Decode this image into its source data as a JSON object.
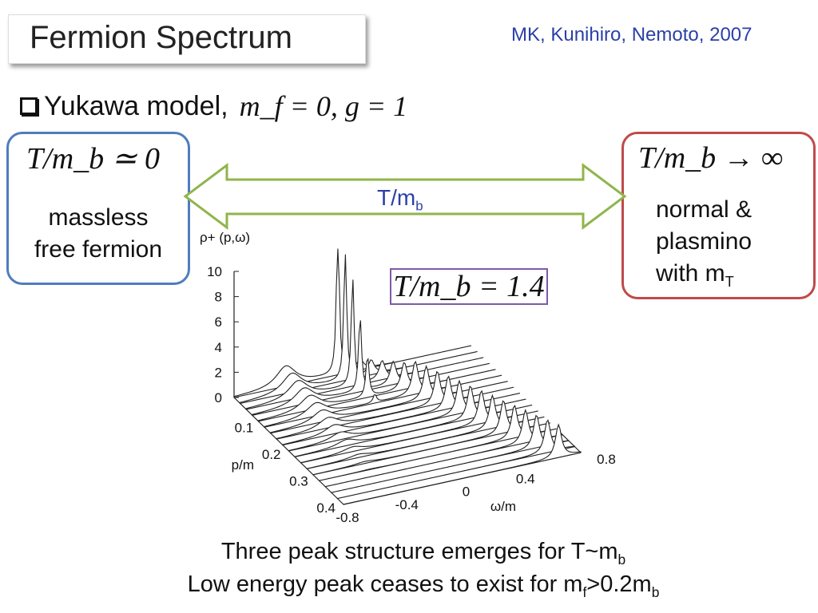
{
  "title": "Fermion Spectrum",
  "citation": "MK, Kunihiro, Nemoto, 2007",
  "bullet": {
    "text": "Yukawa model, ",
    "math": "m_f = 0, g = 1"
  },
  "left_box": {
    "math": "T/m_b ≃ 0",
    "line1": "massless",
    "line2": "free fermion",
    "color": "#4f7cbf"
  },
  "right_box": {
    "math": "T/m_b → ∞",
    "line1": "normal &",
    "line2": "plasmino",
    "line3": "with m",
    "line3_sub": "T",
    "color": "#c04a4a"
  },
  "arrow": {
    "label": "T/m",
    "label_sub": "b",
    "color": "#8fb54a"
  },
  "plot": {
    "z_label": "ρ+ (p,ω)",
    "z_ticks": [
      "0",
      "2",
      "4",
      "6",
      "8",
      "10"
    ],
    "p_label": "p/m",
    "p_ticks": [
      "0.1",
      "0.2",
      "0.3",
      "0.4"
    ],
    "w_label": "ω/m",
    "w_ticks": [
      "-0.8",
      "-0.4",
      "0",
      "0.4",
      "0.8"
    ],
    "annotation": "T/m_b = 1.4"
  },
  "bottom": {
    "line1": "Three peak structure emerges for T~m",
    "line1_sub": "b",
    "line2a": "Low energy peak ceases to exist for m",
    "line2_sub1": "f",
    "line2b": ">0.2m",
    "line2_sub2": "b"
  }
}
